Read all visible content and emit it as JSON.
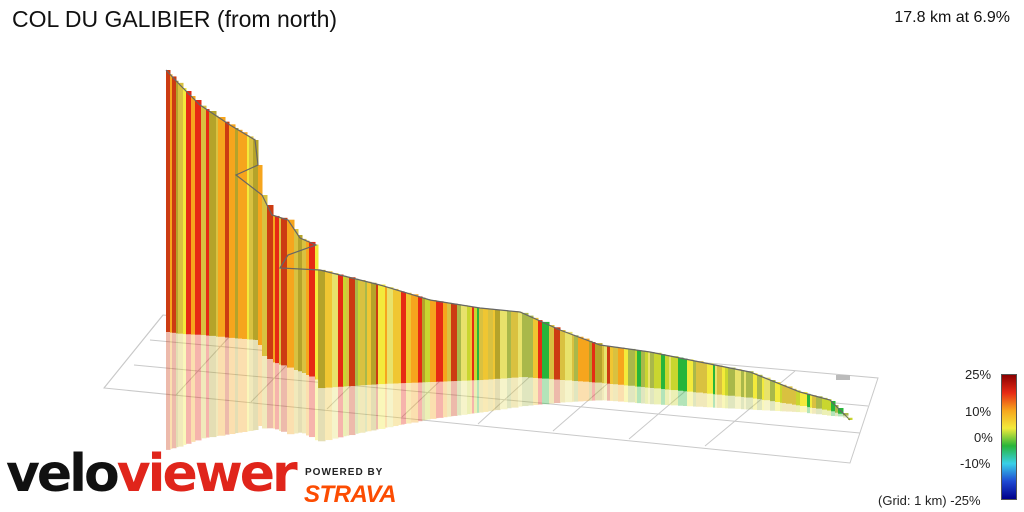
{
  "header": {
    "title": "COL DU GALIBIER (from north)",
    "stats": "17.8 km at 6.9%"
  },
  "legend": {
    "labels": [
      "25%",
      "10%",
      "0%",
      "-10%",
      "-25%"
    ],
    "grid_note": "(Grid: 1 km)",
    "colors": [
      "#8b0000",
      "#e62a14",
      "#f6a51d",
      "#f3ea3b",
      "#27b53a",
      "#39d0e8",
      "#1f4ad3",
      "#00008b"
    ]
  },
  "branding": {
    "logo_part1": "velo",
    "logo_part2": "viewer",
    "powered_by": "POWERED BY",
    "partner": "STRAVA",
    "brand_red": "#e0251b",
    "strava_orange": "#fc4c02"
  }
}
